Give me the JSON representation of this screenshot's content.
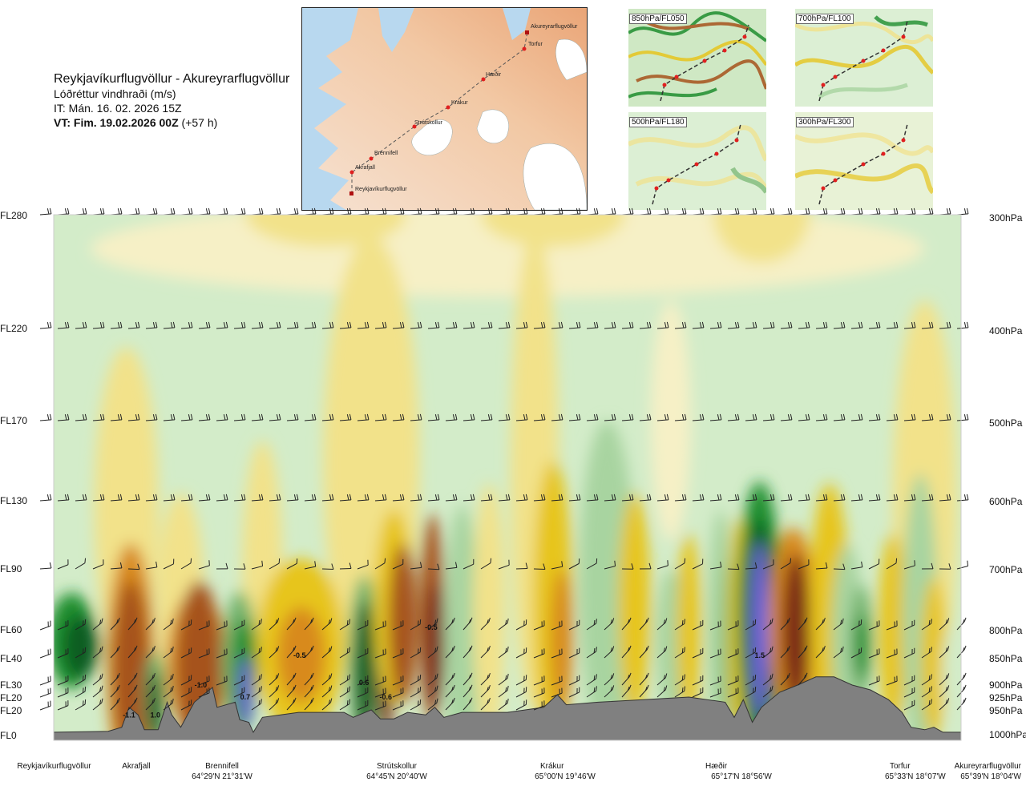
{
  "title": {
    "route": "Reykjavíkurflugvöllur - Akureyrarflugvöllur",
    "parameter": "Lóðréttur vindhraði (m/s)",
    "issue": "IT: Mán. 16. 02. 2026 15Z",
    "valid_prefix": "VT: Fim. 19.02.2026 00Z",
    "valid_suffix": "(+57 h)"
  },
  "maps": {
    "main_labels": [
      "Akureyrarflugvöllur",
      "Torfur",
      "Hæðir",
      "Krákur",
      "Strútskollur",
      "Brennifell",
      "Akrafjall",
      "Reykjavíkurflugvöllur"
    ],
    "mini": [
      "850hPa/FL050",
      "700hPa/FL100",
      "500hPa/FL180",
      "300hPa/FL300"
    ]
  },
  "chart_data": {
    "type": "heatmap",
    "title": "Lóðréttur vindhraði (m/s)",
    "left_axis": [
      "FL280",
      "FL220",
      "FL170",
      "FL130",
      "FL90",
      "FL60",
      "FL40",
      "FL30",
      "FL20",
      "FL20",
      "FL0"
    ],
    "right_axis": [
      "300hPa",
      "400hPa",
      "500hPa",
      "600hPa",
      "700hPa",
      "800hPa",
      "850hPa",
      "900hPa",
      "925hPa",
      "950hPa",
      "1000hPa"
    ],
    "pressure_levels_hpa": [
      300,
      400,
      500,
      600,
      700,
      800,
      850,
      900,
      925,
      950,
      1000
    ],
    "ylim_hpa": [
      1000,
      300
    ],
    "stations": [
      {
        "name": "Reykjavíkurflugvöllur",
        "coord": "",
        "dist": 0.0
      },
      {
        "name": "Akrafjall",
        "coord": "",
        "dist": 0.091
      },
      {
        "name": "Brennifell",
        "coord": "64°29'N 21°31'W",
        "dist": 0.186
      },
      {
        "name": "Strútskollur",
        "coord": "64°45'N 20°40'W",
        "dist": 0.375
      },
      {
        "name": "Krákur",
        "coord": "65°00'N 19°46'W",
        "dist": 0.548
      },
      {
        "name": "Hæðir",
        "coord": "65°17'N 18°56'W",
        "dist": 0.726
      },
      {
        "name": "Torfur",
        "coord": "65°33'N 18°07'W",
        "dist": 0.927
      },
      {
        "name": "Akureyrarflugvöllur",
        "coord": "65°39'N 18°04'W",
        "dist": 1.0
      }
    ],
    "value_labels": [
      {
        "text": "-1.1",
        "dist": 0.083,
        "p": 965
      },
      {
        "text": "1.0",
        "dist": 0.112,
        "p": 965
      },
      {
        "text": "-1.0",
        "dist": 0.162,
        "p": 905
      },
      {
        "text": "0.7",
        "dist": 0.211,
        "p": 930
      },
      {
        "text": "-0.5",
        "dist": 0.271,
        "p": 850
      },
      {
        "text": "0.6",
        "dist": 0.342,
        "p": 900
      },
      {
        "text": "-0.6",
        "dist": 0.366,
        "p": 930
      },
      {
        "text": "-0.5",
        "dist": 0.416,
        "p": 800
      },
      {
        "text": "1.5",
        "dist": 0.778,
        "p": 850
      }
    ],
    "color_scale": [
      {
        "max": -1.0,
        "color": "#7b2a14"
      },
      {
        "max": -0.6,
        "color": "#a6521c"
      },
      {
        "max": -0.35,
        "color": "#d88a1e"
      },
      {
        "max": -0.2,
        "color": "#e7c51f"
      },
      {
        "max": -0.1,
        "color": "#f2e28a"
      },
      {
        "max": -0.03,
        "color": "#f6f0c6"
      },
      {
        "max": 0.05,
        "color": "#ffffff"
      },
      {
        "max": 0.15,
        "color": "#d3ecc9"
      },
      {
        "max": 0.3,
        "color": "#a8d4a0"
      },
      {
        "max": 0.6,
        "color": "#74b46e"
      },
      {
        "max": 1.0,
        "color": "#1f8e2f"
      },
      {
        "max": 1.3,
        "color": "#0f5d22"
      },
      {
        "max": 99,
        "color": "#6e63d6"
      }
    ],
    "grid": false
  }
}
